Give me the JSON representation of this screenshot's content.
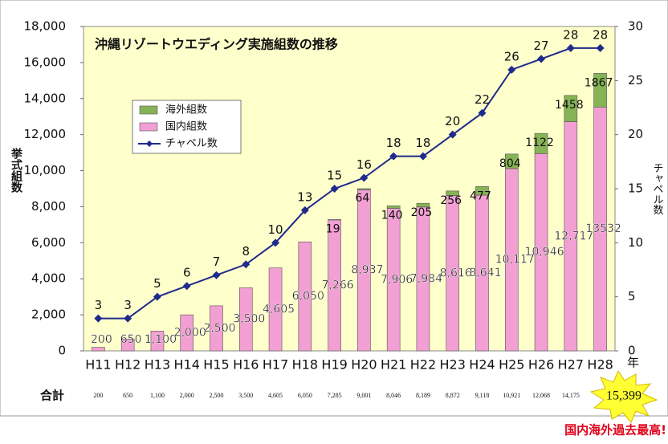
{
  "chart_data": {
    "type": "bar",
    "title": "沖縄リゾートウエディング実施組数の推移",
    "y_label": "挙式組数",
    "y2_label": "チャペル数",
    "x_label": "年",
    "categories": [
      "H11",
      "H12",
      "H13",
      "H14",
      "H15",
      "H16",
      "H17",
      "H18",
      "H19",
      "H20",
      "H21",
      "H22",
      "H23",
      "H24",
      "H25",
      "H26",
      "H27",
      "H28"
    ],
    "stacked": true,
    "series": [
      {
        "name": "国内組数",
        "color": "#f29fd4",
        "type": "bar",
        "values": [
          200,
          650,
          1100,
          2000,
          2500,
          3500,
          4605,
          6050,
          7266,
          8937,
          7906,
          7984,
          8616,
          8641,
          10117,
          10946,
          12717,
          13532
        ],
        "value_labels": [
          "200",
          "650",
          "1,100",
          "2,000",
          "2,500",
          "3,500",
          "4,605",
          "6,050",
          "7,266",
          "8,937",
          "7,906",
          "7,984",
          "8,616",
          "8,641",
          "10,117",
          "10,946",
          "12,717",
          "13532"
        ]
      },
      {
        "name": "海外組数",
        "color": "#86b356",
        "type": "bar",
        "values": [
          null,
          null,
          null,
          null,
          null,
          null,
          null,
          null,
          19,
          64,
          140,
          205,
          256,
          477,
          804,
          1122,
          1458,
          1867
        ]
      },
      {
        "name": "チャペル数",
        "color": "#1f2b8c",
        "type": "line",
        "axis": "y2",
        "values": [
          3,
          3,
          5,
          6,
          7,
          8,
          10,
          13,
          15,
          16,
          18,
          18,
          20,
          22,
          26,
          27,
          28,
          28
        ]
      }
    ],
    "ylim": [
      0,
      18000
    ],
    "yticks": [
      0,
      {
        "value": 2000,
        "label": "2,000"
      },
      {
        "value": 4000,
        "label": "4,000"
      },
      {
        "value": 6000,
        "label": "6,000"
      },
      {
        "value": 8000,
        "label": "8,000"
      },
      {
        "value": 10000,
        "label": "10,000"
      },
      {
        "value": 12000,
        "label": "12,000"
      },
      {
        "value": 14000,
        "label": "14,000"
      },
      {
        "value": 16000,
        "label": "16,000"
      },
      {
        "value": 18000,
        "label": "18,000"
      }
    ],
    "y2lim": [
      0,
      30
    ],
    "y2ticks": [
      0,
      5,
      10,
      15,
      20,
      25,
      30
    ],
    "legend_order": [
      1,
      0,
      2
    ],
    "totals": {
      "label": "合計",
      "values": [
        200,
        650,
        1100,
        2000,
        2500,
        3500,
        4605,
        6050,
        7285,
        9001,
        8046,
        8189,
        8872,
        9118,
        10921,
        12068,
        14175,
        15399
      ],
      "value_labels": [
        "200",
        "650",
        "1,100",
        "2,000",
        "2,500",
        "3,500",
        "4,605",
        "6,050",
        "7,285",
        "9,001",
        "8,046",
        "8,189",
        "8,872",
        "9,118",
        "10,921",
        "12,068",
        "14,175",
        "15,399"
      ]
    },
    "footnote": "国内海外過去最高!"
  }
}
